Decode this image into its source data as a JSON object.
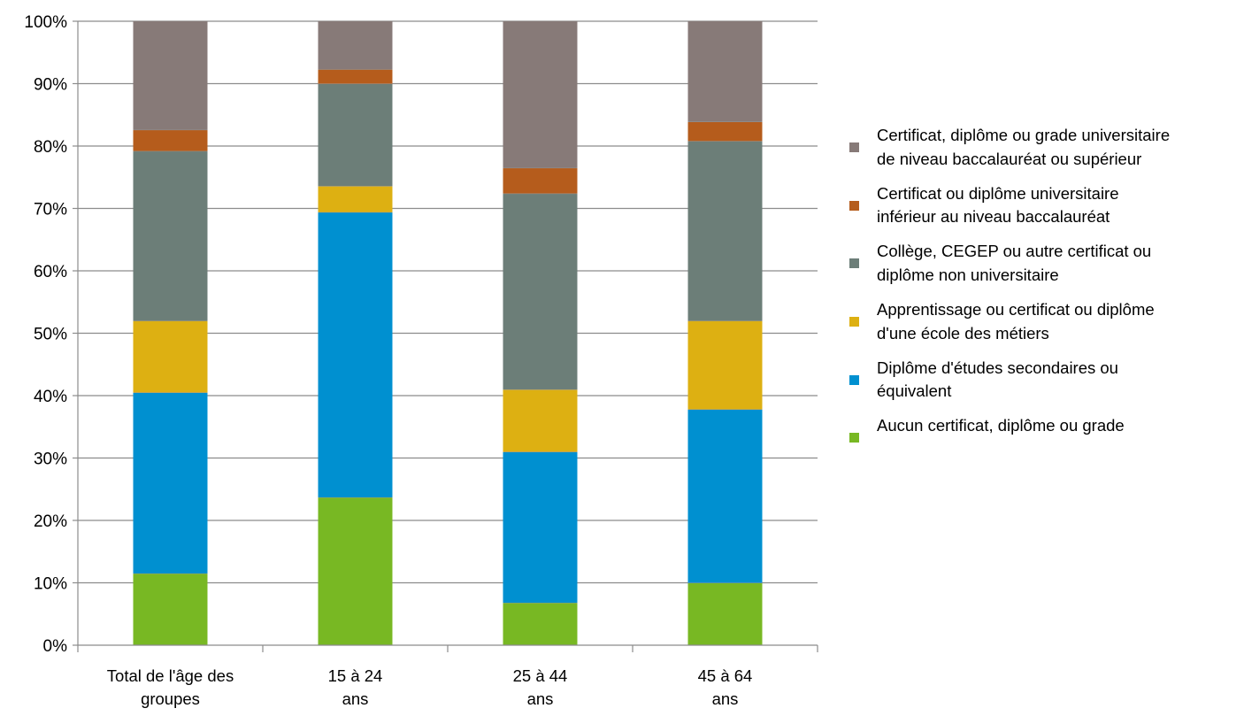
{
  "chart_data": {
    "type": "bar",
    "stacked": true,
    "percent_axis": true,
    "categories": [
      "Total de l'âge des groupes",
      "15 à 24 ans",
      "25 à 44 ans",
      "45 à 64 ans"
    ],
    "category_lines": [
      [
        "Total de l'âge des",
        "groupes"
      ],
      [
        "15 à 24",
        "ans"
      ],
      [
        "25 à 44",
        "ans"
      ],
      [
        "45 à 64",
        "ans"
      ]
    ],
    "series": [
      {
        "name": "Aucun certificat, diplôme ou grade",
        "color": "#78b823",
        "values": [
          11.5,
          23.7,
          6.8,
          10.0
        ]
      },
      {
        "name": "Diplôme d'études secondaires ou équivalent",
        "color": "#0090d0",
        "values": [
          29.0,
          45.7,
          24.2,
          27.8
        ]
      },
      {
        "name": "Apprentissage ou certificat ou diplôme d'une école des métiers",
        "color": "#ddb012",
        "values": [
          11.5,
          4.2,
          10.0,
          14.2
        ]
      },
      {
        "name": "Collège, CEGEP ou autre certificat ou diplôme non universitaire",
        "color": "#6c7e78",
        "values": [
          27.2,
          16.4,
          31.4,
          28.8
        ]
      },
      {
        "name": "Certificat ou diplôme universitaire inférieur au niveau baccalauréat",
        "color": "#b55c1c",
        "values": [
          3.4,
          2.3,
          4.1,
          3.1
        ]
      },
      {
        "name": "Certificat, diplôme ou grade universitaire de niveau baccalauréat ou supérieur",
        "color": "#877a78",
        "values": [
          17.4,
          7.7,
          23.5,
          16.1
        ]
      }
    ],
    "yticks": [
      "0%",
      "10%",
      "20%",
      "30%",
      "40%",
      "50%",
      "60%",
      "70%",
      "80%",
      "90%",
      "100%"
    ],
    "ylim": [
      0,
      100
    ],
    "grid": true,
    "legend_position": "right"
  },
  "legend": [
    {
      "text": "Certificat, diplôme ou grade universitaire\nde niveau baccalauréat ou supérieur",
      "color": "#877a78"
    },
    {
      "text": "Certificat ou diplôme universitaire\ninférieur au niveau baccalauréat",
      "color": "#b55c1c"
    },
    {
      "text": "Collège, CEGEP ou autre certificat ou\ndiplôme non universitaire",
      "color": "#6c7e78"
    },
    {
      "text": "Apprentissage ou certificat ou diplôme\nd'une école des métiers",
      "color": "#ddb012"
    },
    {
      "text": "Diplôme d'études secondaires ou\néquivalent",
      "color": "#0090d0"
    },
    {
      "text": "Aucun certificat, diplôme ou grade",
      "color": "#78b823"
    }
  ]
}
